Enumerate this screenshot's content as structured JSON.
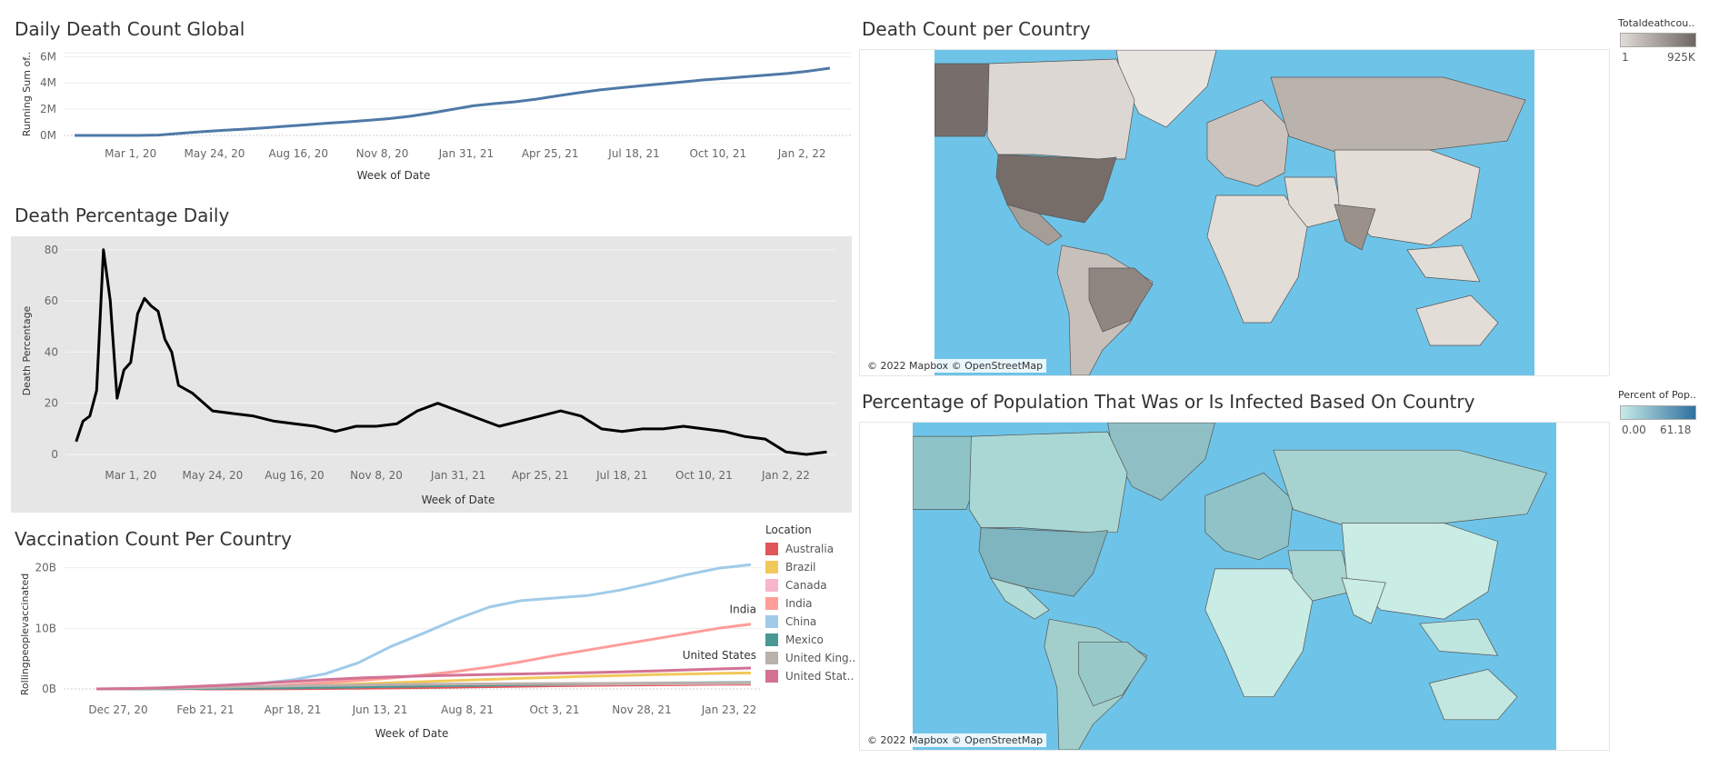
{
  "sections": {
    "daily_death": {
      "title": "Daily Death Count Global",
      "ylabel": "Running Sum of..",
      "xlabel": "Week of Date",
      "y_ticks": [
        "6M",
        "4M",
        "2M",
        "0M"
      ],
      "x_ticks": [
        "Mar 1, 20",
        "May 24, 20",
        "Aug 16, 20",
        "Nov 8, 20",
        "Jan 31, 21",
        "Apr 25, 21",
        "Jul 18, 21",
        "Oct 10, 21",
        "Jan 2, 22"
      ]
    },
    "death_pct": {
      "title": "Death Percentage Daily",
      "ylabel": "Death Percentage",
      "xlabel": "Week of Date",
      "y_ticks": [
        "80",
        "60",
        "40",
        "20",
        "0"
      ],
      "x_ticks": [
        "Mar 1, 20",
        "May 24, 20",
        "Aug 16, 20",
        "Nov 8, 20",
        "Jan 31, 21",
        "Apr 25, 21",
        "Jul 18, 21",
        "Oct 10, 21",
        "Jan 2, 22"
      ]
    },
    "vaccination": {
      "title": "Vaccination Count Per Country",
      "ylabel": "Rollingpeoplevaccinated",
      "xlabel": "Week of Date",
      "y_ticks": [
        "20B",
        "10B",
        "0B"
      ],
      "x_ticks": [
        "Dec 27, 20",
        "Feb 21, 21",
        "Apr 18, 21",
        "Jun 13, 21",
        "Aug 8, 21",
        "Oct 3, 21",
        "Nov 28, 21",
        "Jan 23, 22"
      ],
      "label_india": "India",
      "label_us": "United States",
      "legend_title": "Location",
      "legend": [
        {
          "name": "Australia",
          "color": "#e15759"
        },
        {
          "name": "Brazil",
          "color": "#f1c85a"
        },
        {
          "name": "Canada",
          "color": "#f7b6c9"
        },
        {
          "name": "India",
          "color": "#ff9d9a"
        },
        {
          "name": "China",
          "color": "#a0cbe8"
        },
        {
          "name": "Mexico",
          "color": "#499894"
        },
        {
          "name": "United King..",
          "color": "#bab0ac"
        },
        {
          "name": "United Stat..",
          "color": "#d37295"
        }
      ]
    },
    "map_death": {
      "title": "Death Count per Country",
      "legend_title": "Totaldeathcou..",
      "legend_min": "1",
      "legend_max": "925K",
      "attribution": "© 2022 Mapbox © OpenStreetMap"
    },
    "map_infected": {
      "title": "Percentage of Population That Was or Is Infected Based On Country",
      "legend_title": "Percent of Pop..",
      "legend_min": "0.00",
      "legend_max": "61.18",
      "attribution": "© 2022 Mapbox © OpenStreetMap"
    }
  },
  "chart_data": [
    {
      "type": "line",
      "title": "Daily Death Count Global",
      "xlabel": "Week of Date",
      "ylabel": "Running Sum of..",
      "ylim": [
        0,
        6300000
      ],
      "x": [
        "2020-01-05",
        "2020-01-26",
        "2020-02-16",
        "2020-03-08",
        "2020-03-29",
        "2020-04-19",
        "2020-05-10",
        "2020-05-31",
        "2020-06-21",
        "2020-07-12",
        "2020-08-02",
        "2020-08-23",
        "2020-09-13",
        "2020-10-04",
        "2020-10-25",
        "2020-11-15",
        "2020-12-06",
        "2020-12-27",
        "2021-01-17",
        "2021-02-07",
        "2021-02-28",
        "2021-03-21",
        "2021-04-11",
        "2021-05-02",
        "2021-05-23",
        "2021-06-13",
        "2021-07-04",
        "2021-07-25",
        "2021-08-15",
        "2021-09-05",
        "2021-09-26",
        "2021-10-17",
        "2021-11-07",
        "2021-11-28",
        "2021-12-19",
        "2022-01-09",
        "2022-01-30"
      ],
      "series": [
        {
          "values": [
            0,
            0,
            0,
            0,
            30000,
            150000,
            280000,
            380000,
            470000,
            570000,
            690000,
            800000,
            930000,
            1030000,
            1150000,
            1280000,
            1460000,
            1700000,
            1980000,
            2260000,
            2420000,
            2560000,
            2760000,
            3010000,
            3250000,
            3460000,
            3630000,
            3780000,
            3930000,
            4080000,
            4230000,
            4350000,
            4470000,
            4600000,
            4720000,
            4900000,
            5120000
          ]
        }
      ]
    },
    {
      "type": "line",
      "title": "Death Percentage Daily",
      "xlabel": "Week of Date",
      "ylabel": "Death Percentage",
      "ylim": [
        0,
        85
      ],
      "x": [
        "2020-01-05",
        "2020-01-12",
        "2020-01-19",
        "2020-01-26",
        "2020-02-02",
        "2020-02-09",
        "2020-02-16",
        "2020-02-23",
        "2020-03-01",
        "2020-03-08",
        "2020-03-15",
        "2020-03-22",
        "2020-03-29",
        "2020-04-05",
        "2020-04-12",
        "2020-04-19",
        "2020-05-03",
        "2020-05-24",
        "2020-06-14",
        "2020-07-05",
        "2020-07-26",
        "2020-08-16",
        "2020-09-06",
        "2020-09-27",
        "2020-10-18",
        "2020-11-08",
        "2020-11-29",
        "2020-12-20",
        "2021-01-10",
        "2021-01-31",
        "2021-02-21",
        "2021-03-14",
        "2021-04-04",
        "2021-04-25",
        "2021-05-16",
        "2021-06-06",
        "2021-06-27",
        "2021-07-18",
        "2021-08-08",
        "2021-08-29",
        "2021-09-19",
        "2021-10-10",
        "2021-10-31",
        "2021-11-21",
        "2021-12-12",
        "2022-01-02",
        "2022-01-23",
        "2022-02-13"
      ],
      "series": [
        {
          "values": [
            5,
            13,
            15,
            25,
            80,
            60,
            22,
            33,
            36,
            55,
            61,
            58,
            56,
            45,
            40,
            27,
            24,
            17,
            16,
            15,
            13,
            12,
            11,
            9,
            11,
            11,
            12,
            17,
            20,
            17,
            14,
            11,
            13,
            15,
            17,
            15,
            10,
            9,
            10,
            10,
            11,
            10,
            9,
            7,
            6,
            1,
            0,
            1
          ]
        }
      ]
    },
    {
      "type": "line",
      "title": "Vaccination Count Per Country",
      "xlabel": "Week of Date",
      "ylabel": "Rollingpeoplevaccinated",
      "ylim": [
        0,
        21000000000
      ],
      "x": [
        "2020-12-13",
        "2021-01-03",
        "2021-01-24",
        "2021-02-14",
        "2021-03-07",
        "2021-03-28",
        "2021-04-18",
        "2021-05-09",
        "2021-05-30",
        "2021-06-20",
        "2021-07-11",
        "2021-08-01",
        "2021-08-22",
        "2021-09-12",
        "2021-10-03",
        "2021-10-24",
        "2021-11-14",
        "2021-12-05",
        "2021-12-26",
        "2022-01-16",
        "2022-02-06"
      ],
      "series": [
        {
          "name": "Australia",
          "values": [
            null,
            null,
            null,
            0,
            0,
            20000000,
            50000000,
            80000000,
            120000000,
            170000000,
            230000000,
            300000000,
            380000000,
            450000000,
            520000000,
            580000000,
            630000000,
            680000000,
            720000000,
            760000000,
            800000000
          ]
        },
        {
          "name": "Brazil",
          "values": [
            null,
            null,
            0,
            50000000,
            150000000,
            300000000,
            480000000,
            650000000,
            820000000,
            1000000000,
            1200000000,
            1400000000,
            1580000000,
            1750000000,
            1920000000,
            2080000000,
            2220000000,
            2350000000,
            2460000000,
            2560000000,
            2640000000
          ]
        },
        {
          "name": "Canada",
          "values": [
            0,
            10000000,
            30000000,
            60000000,
            100000000,
            150000000,
            210000000,
            280000000,
            360000000,
            440000000,
            520000000,
            590000000,
            650000000,
            700000000,
            740000000,
            780000000,
            810000000,
            840000000,
            870000000,
            900000000,
            930000000
          ]
        },
        {
          "name": "India",
          "values": [
            null,
            null,
            0,
            60000000,
            160000000,
            380000000,
            700000000,
            1050000000,
            1400000000,
            1800000000,
            2300000000,
            2900000000,
            3600000000,
            4500000000,
            5500000000,
            6400000000,
            7300000000,
            8200000000,
            9100000000,
            10000000000,
            10700000000
          ]
        },
        {
          "name": "China",
          "values": [
            0,
            50000000,
            150000000,
            300000000,
            550000000,
            900000000,
            1500000000,
            2500000000,
            4300000000,
            7000000000,
            9200000000,
            11500000000,
            13500000000,
            14600000000,
            15000000000,
            15400000000,
            16300000000,
            17500000000,
            18800000000,
            19900000000,
            20500000000
          ]
        },
        {
          "name": "Mexico",
          "values": [
            0,
            5000000,
            30000000,
            70000000,
            110000000,
            150000000,
            200000000,
            260000000,
            330000000,
            410000000,
            490000000,
            570000000,
            650000000,
            720000000,
            790000000,
            850000000,
            900000000,
            950000000,
            990000000,
            1030000000,
            1070000000
          ]
        },
        {
          "name": "United King..",
          "values": [
            0,
            30000000,
            100000000,
            200000000,
            300000000,
            400000000,
            500000000,
            580000000,
            650000000,
            710000000,
            760000000,
            800000000,
            830000000,
            860000000,
            880000000,
            900000000,
            920000000,
            940000000,
            960000000,
            980000000,
            1000000000
          ]
        },
        {
          "name": "United Stat..",
          "values": [
            0,
            60000000,
            200000000,
            400000000,
            650000000,
            950000000,
            1250000000,
            1550000000,
            1800000000,
            2000000000,
            2150000000,
            2270000000,
            2380000000,
            2480000000,
            2580000000,
            2680000000,
            2800000000,
            2950000000,
            3130000000,
            3300000000,
            3450000000
          ]
        }
      ]
    }
  ]
}
